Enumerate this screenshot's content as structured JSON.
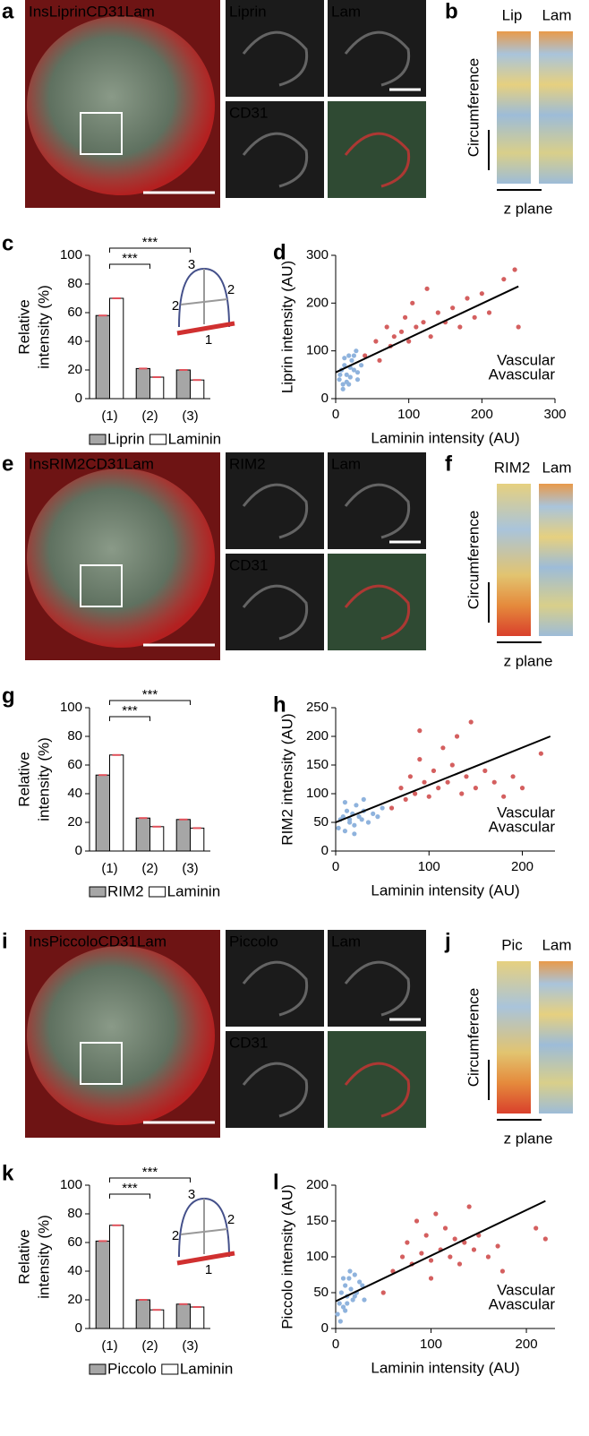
{
  "figure_rows": [
    {
      "image_panel": "a",
      "overlay_labels": [
        "Ins",
        "Liprin",
        "CD31",
        "Lam"
      ],
      "channel_labels": [
        "Liprin",
        "Lam",
        "CD31"
      ],
      "profile_panel": "b",
      "profile_labels": [
        "Lip",
        "Lam"
      ],
      "profile_axis": "Circumference",
      "profile_z": "z plane"
    },
    {
      "image_panel": "e",
      "overlay_labels": [
        "Ins",
        "RIM2",
        "CD31",
        "Lam"
      ],
      "channel_labels": [
        "RIM2",
        "Lam",
        "CD31"
      ],
      "profile_panel": "f",
      "profile_labels": [
        "RIM2",
        "Lam"
      ],
      "profile_axis": "Circumference",
      "profile_z": "z plane"
    },
    {
      "image_panel": "i",
      "overlay_labels": [
        "Ins",
        "Piccolo",
        "CD31",
        "Lam"
      ],
      "channel_labels": [
        "Piccolo",
        "Lam",
        "CD31"
      ],
      "profile_panel": "j",
      "profile_labels": [
        "Pic",
        "Lam"
      ],
      "profile_axis": "Circumference",
      "profile_z": "z plane"
    }
  ],
  "overlay_label_colors": [
    "#d9d9d9",
    "#3fb54a",
    "#4a5fd0",
    "#d7263d"
  ],
  "chart_data": [
    {
      "type": "bar",
      "panel_label": "c",
      "ylabel": [
        "Relative",
        "intensity (%)"
      ],
      "categories": [
        "(1)",
        "(2)",
        "(3)"
      ],
      "series": [
        {
          "name": "Liprin",
          "color": "#a6a6a6",
          "values": [
            58,
            21,
            20
          ]
        },
        {
          "name": "Laminin",
          "color": "#ffffff",
          "values": [
            70,
            15,
            13
          ]
        }
      ],
      "ylim": [
        0,
        100
      ],
      "yticks": [
        0,
        20,
        40,
        60,
        80,
        100
      ],
      "significance_labels": [
        "***",
        "***"
      ],
      "inset_labels": [
        "3",
        "2",
        "2",
        "1"
      ]
    },
    {
      "type": "scatter",
      "panel_label": "d",
      "xlabel": "Laminin intensity (AU)",
      "ylabel": "Liprin intensity (AU)",
      "xlim": [
        0,
        300
      ],
      "xticks": [
        0,
        100,
        200,
        300
      ],
      "ylim": [
        0,
        300
      ],
      "yticks": [
        0,
        100,
        200,
        300
      ],
      "legend": "bottom-right",
      "series": [
        {
          "name": "Vascular",
          "color": "#d45f5f",
          "x": [
            40,
            55,
            60,
            70,
            75,
            80,
            90,
            95,
            100,
            105,
            110,
            120,
            125,
            130,
            140,
            150,
            160,
            170,
            180,
            190,
            200,
            210,
            230,
            245,
            250
          ],
          "values": [
            90,
            120,
            80,
            150,
            110,
            130,
            140,
            170,
            120,
            200,
            150,
            160,
            230,
            130,
            180,
            160,
            190,
            150,
            210,
            170,
            220,
            180,
            250,
            270,
            150
          ]
        },
        {
          "name": "Avascular",
          "color": "#8fb3dd",
          "x": [
            5,
            8,
            10,
            12,
            15,
            18,
            20,
            22,
            25,
            28,
            30,
            35,
            10,
            15,
            20,
            6,
            25,
            30,
            12,
            18
          ],
          "values": [
            40,
            60,
            30,
            70,
            50,
            90,
            45,
            80,
            60,
            100,
            55,
            70,
            20,
            35,
            65,
            50,
            90,
            40,
            85,
            30
          ]
        }
      ],
      "fit_line": {
        "color": "#000000",
        "x": [
          0,
          250
        ],
        "values": [
          55,
          235
        ]
      }
    },
    {
      "type": "bar",
      "panel_label": "g",
      "ylabel": [
        "Relative",
        "intensity (%)"
      ],
      "categories": [
        "(1)",
        "(2)",
        "(3)"
      ],
      "series": [
        {
          "name": "RIM2",
          "color": "#a6a6a6",
          "values": [
            53,
            23,
            22
          ]
        },
        {
          "name": "Laminin",
          "color": "#ffffff",
          "values": [
            67,
            17,
            16
          ]
        }
      ],
      "ylim": [
        0,
        100
      ],
      "yticks": [
        0,
        20,
        40,
        60,
        80,
        100
      ],
      "significance_labels": [
        "***",
        "***"
      ]
    },
    {
      "type": "scatter",
      "panel_label": "h",
      "xlabel": "Laminin intensity (AU)",
      "ylabel": "RIM2 intensity (AU)",
      "xlim": [
        0,
        235
      ],
      "xticks": [
        0,
        100,
        200
      ],
      "ylim": [
        0,
        250
      ],
      "yticks": [
        0,
        50,
        100,
        150,
        200,
        250
      ],
      "legend": "bottom-right",
      "series": [
        {
          "name": "Vascular",
          "color": "#d45f5f",
          "x": [
            60,
            70,
            75,
            80,
            85,
            90,
            95,
            100,
            105,
            110,
            115,
            120,
            125,
            130,
            135,
            140,
            145,
            150,
            160,
            170,
            180,
            190,
            200,
            220,
            90
          ],
          "values": [
            75,
            110,
            90,
            130,
            100,
            160,
            120,
            95,
            140,
            110,
            180,
            120,
            150,
            200,
            100,
            130,
            225,
            110,
            140,
            120,
            95,
            130,
            110,
            170,
            210
          ]
        },
        {
          "name": "Avascular",
          "color": "#8fb3dd",
          "x": [
            3,
            5,
            8,
            10,
            12,
            15,
            18,
            20,
            22,
            25,
            28,
            30,
            35,
            40,
            45,
            50,
            10,
            20,
            30,
            15
          ],
          "values": [
            40,
            55,
            60,
            35,
            70,
            50,
            65,
            45,
            80,
            60,
            55,
            70,
            50,
            65,
            60,
            75,
            85,
            30,
            90,
            55
          ]
        }
      ],
      "fit_line": {
        "color": "#000000",
        "x": [
          0,
          230
        ],
        "values": [
          50,
          200
        ]
      }
    },
    {
      "type": "bar",
      "panel_label": "k",
      "ylabel": [
        "Relative",
        "intensity (%)"
      ],
      "categories": [
        "(1)",
        "(2)",
        "(3)"
      ],
      "series": [
        {
          "name": "Piccolo",
          "color": "#a6a6a6",
          "values": [
            61,
            20,
            17
          ]
        },
        {
          "name": "Laminin",
          "color": "#ffffff",
          "values": [
            72,
            13,
            15
          ]
        }
      ],
      "ylim": [
        0,
        100
      ],
      "yticks": [
        0,
        20,
        40,
        60,
        80,
        100
      ],
      "significance_labels": [
        "***",
        "***"
      ],
      "inset_labels": [
        "3",
        "2",
        "2",
        "1"
      ]
    },
    {
      "type": "scatter",
      "panel_label": "l",
      "xlabel": "Laminin intensity (AU)",
      "ylabel": "Piccolo intensity (AU)",
      "xlim": [
        0,
        230
      ],
      "xticks": [
        0,
        100,
        200
      ],
      "ylim": [
        0,
        200
      ],
      "yticks": [
        0,
        50,
        100,
        150,
        200
      ],
      "legend": "bottom-right",
      "series": [
        {
          "name": "Vascular",
          "color": "#d45f5f",
          "x": [
            50,
            60,
            70,
            75,
            80,
            85,
            90,
            95,
            100,
            105,
            110,
            115,
            120,
            125,
            130,
            135,
            140,
            145,
            150,
            160,
            170,
            175,
            210,
            220,
            100
          ],
          "values": [
            50,
            80,
            100,
            120,
            90,
            150,
            105,
            130,
            95,
            160,
            110,
            140,
            100,
            125,
            90,
            120,
            170,
            110,
            130,
            100,
            115,
            80,
            140,
            125,
            70
          ]
        },
        {
          "name": "Avascular",
          "color": "#8fb3dd",
          "x": [
            2,
            4,
            6,
            8,
            10,
            12,
            14,
            16,
            18,
            20,
            22,
            25,
            28,
            30,
            5,
            10,
            15,
            20,
            8,
            12
          ],
          "values": [
            20,
            35,
            50,
            30,
            60,
            45,
            70,
            55,
            40,
            75,
            50,
            65,
            60,
            40,
            10,
            25,
            80,
            45,
            70,
            35
          ]
        }
      ],
      "fit_line": {
        "color": "#000000",
        "x": [
          0,
          220
        ],
        "values": [
          38,
          178
        ]
      }
    }
  ]
}
